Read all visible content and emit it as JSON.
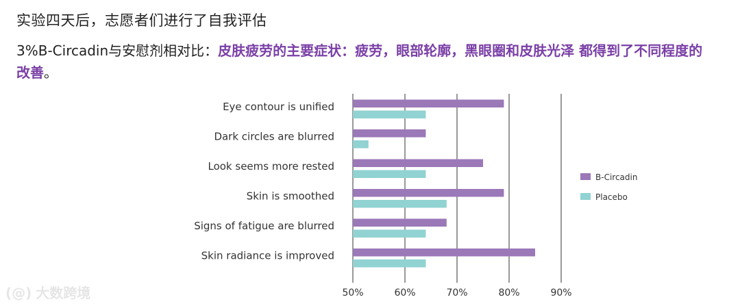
{
  "header": {
    "title": "实验四天后，志愿者们进行了自我评估",
    "subtitle_prefix": "3%B-Circadin与安慰剂相对比：",
    "subtitle_highlight": "皮肤疲劳的主要症状：疲劳，眼部轮廓，黑眼圈和皮肤光泽 都得到了不同程度的改善",
    "subtitle_suffix": "。"
  },
  "watermark": {
    "logo": "(@)",
    "text": "大数跨境"
  },
  "chart_data": {
    "type": "bar",
    "orientation": "horizontal",
    "categories": [
      "Eye contour is unified",
      "Dark circles are blurred",
      "Look seems more rested",
      "Skin is smoothed",
      "Signs of fatigue are blurred",
      "Skin radiance is improved"
    ],
    "series": [
      {
        "name": "B-Circadin",
        "color": "#9b78b8",
        "values": [
          79,
          64,
          75,
          79,
          68,
          85
        ]
      },
      {
        "name": "Placebo",
        "color": "#91d2d2",
        "values": [
          64,
          53,
          64,
          68,
          64,
          64
        ]
      }
    ],
    "xlim": [
      50,
      90
    ],
    "xticks": [
      "50%",
      "60%",
      "70%",
      "80%",
      "90%"
    ],
    "grid": true,
    "legend_position": "right"
  }
}
